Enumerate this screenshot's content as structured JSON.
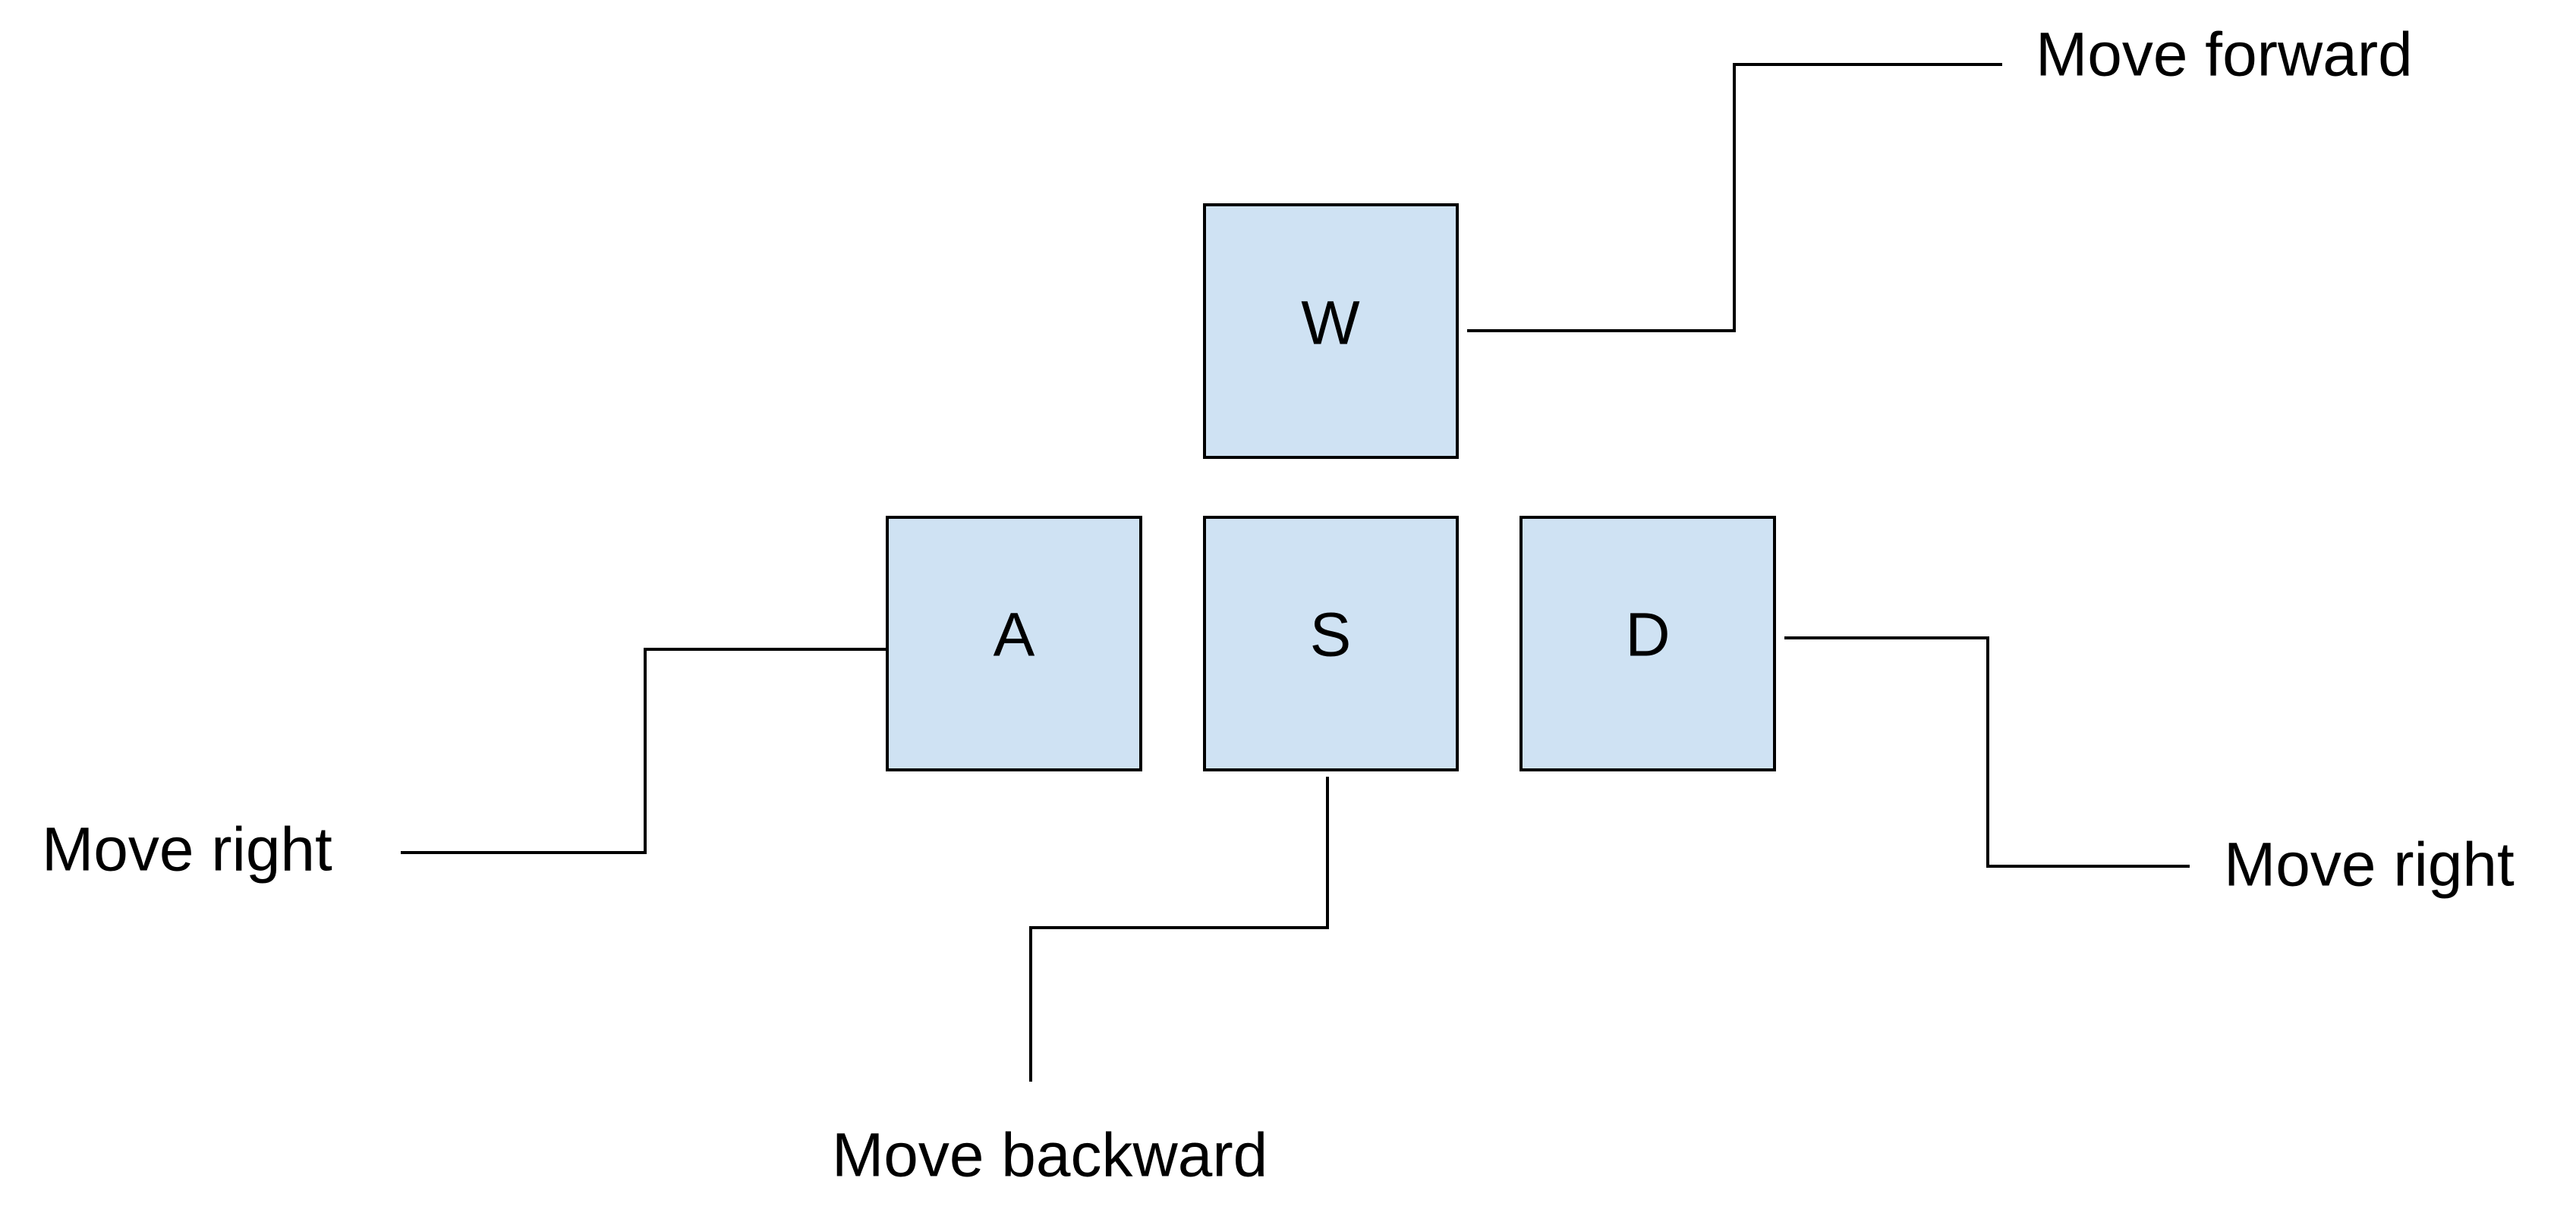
{
  "keys": {
    "w": {
      "label": "W"
    },
    "a": {
      "label": "A"
    },
    "s": {
      "label": "S"
    },
    "d": {
      "label": "D"
    }
  },
  "callouts": {
    "w": "Move forward",
    "a": "Move right",
    "s": "Move backward",
    "d": "Move right"
  },
  "colors": {
    "key_fill": "#cfe2f3",
    "stroke": "#000000",
    "text": "#000000"
  }
}
